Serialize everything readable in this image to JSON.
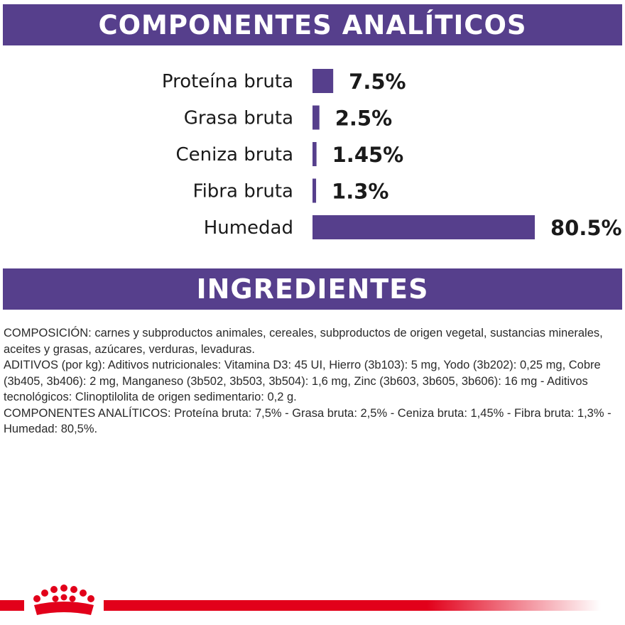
{
  "banners": {
    "analytic_title": "COMPONENTES ANALÍTICOS",
    "ingredients_title": "INGREDIENTES"
  },
  "colors": {
    "banner_purple": "#563f8c",
    "bar_purple": "#563f8c",
    "brand_red": "#e2001a"
  },
  "chart_data": {
    "type": "bar",
    "orientation": "horizontal",
    "title": "COMPONENTES ANALÍTICOS",
    "categories": [
      "Proteína bruta",
      "Grasa bruta",
      "Ceniza bruta",
      "Fibra bruta",
      "Humedad"
    ],
    "values": [
      7.5,
      2.5,
      1.45,
      1.3,
      80.5
    ],
    "value_labels": [
      "7.5%",
      "2.5%",
      "1.45%",
      "1.3%",
      "80.5%"
    ],
    "unit": "%",
    "xlim": [
      0,
      80.5
    ],
    "grid": false,
    "legend": "none"
  },
  "ingredients": {
    "composicion": "COMPOSICIÓN: carnes y subproductos animales, cereales, subproductos de origen vegetal, sustancias minerales, aceites y grasas, azúcares, verduras, levaduras.",
    "aditivos": "ADITIVOS (por kg): Aditivos nutricionales: Vitamina D3: 45 UI, Hierro (3b103): 5 mg, Yodo (3b202): 0,25 mg, Cobre (3b405, 3b406): 2 mg, Manganeso (3b502, 3b503, 3b504): 1,6 mg, Zinc (3b603, 3b605, 3b606): 16 mg - Aditivos tecnológicos: Clinoptilolita de origen sedimentario: 0,2 g.",
    "componentes": "COMPONENTES ANALÍTICOS: Proteína bruta: 7,5% - Grasa bruta: 2,5% - Ceniza bruta: 1,45% - Fibra bruta: 1,3% - Humedad: 80,5%."
  },
  "footer": {
    "logo_icon": "royal-crown-icon"
  }
}
